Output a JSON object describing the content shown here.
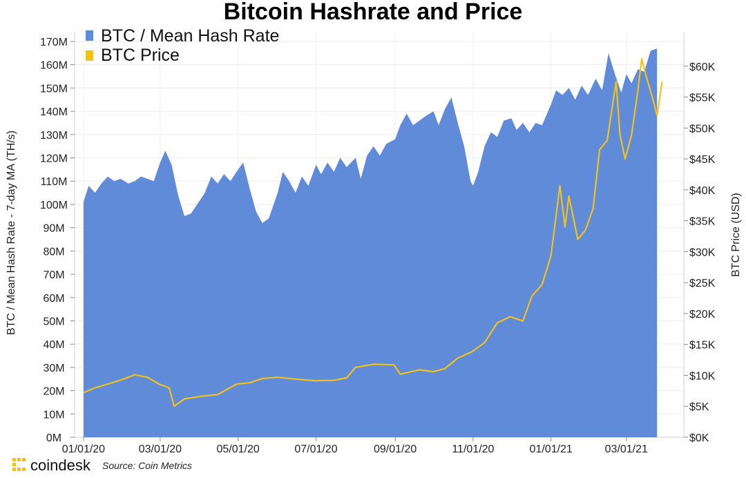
{
  "colors": {
    "hashrate_fill": "#5f8bd9",
    "price_line": "#f2c21b",
    "brand_accent": "#f2c21b"
  },
  "footer": {
    "brand": "coindesk",
    "brand_logo_icon": "coindesk-logo-icon",
    "source": "Source: Coin Metrics"
  },
  "chart_data": {
    "type": "area",
    "title": "Bitcoin Hashrate and Price",
    "ylabel_left": "BTC / Mean Hash Rate - 7-day MA (TH/s)",
    "ylabel_right": "BTC Price (USD)",
    "x_tick_labels": [
      "01/01/20",
      "03/01/20",
      "05/01/20",
      "07/01/20",
      "09/01/20",
      "11/01/20",
      "01/01/21",
      "03/01/21"
    ],
    "x_ticks": [
      "2020-01-01",
      "2020-03-01",
      "2020-05-01",
      "2020-07-01",
      "2020-09-01",
      "2020-11-01",
      "2021-01-01",
      "2021-03-01"
    ],
    "xlim": [
      "2019-12-25",
      "2021-04-15"
    ],
    "left_axis": {
      "ylim": [
        0,
        170
      ],
      "ticks": [
        0,
        10,
        20,
        30,
        40,
        50,
        60,
        70,
        80,
        90,
        100,
        110,
        120,
        130,
        140,
        150,
        160,
        170
      ],
      "tick_labels": [
        "0M",
        "10M",
        "20M",
        "30M",
        "40M",
        "50M",
        "60M",
        "70M",
        "80M",
        "90M",
        "100M",
        "110M",
        "120M",
        "130M",
        "140M",
        "150M",
        "160M",
        "170M"
      ]
    },
    "right_axis": {
      "ylim": [
        0,
        64000
      ],
      "ticks": [
        0,
        5000,
        10000,
        15000,
        20000,
        25000,
        30000,
        35000,
        40000,
        45000,
        50000,
        55000,
        60000
      ],
      "tick_labels": [
        "$0K",
        "$5K",
        "$10K",
        "$15K",
        "$20K",
        "$25K",
        "$30K",
        "$35K",
        "$40K",
        "$45K",
        "$50K",
        "$55K",
        "$60K"
      ]
    },
    "legend": {
      "placement": "top-left",
      "entries": [
        "BTC / Mean Hash Rate",
        "BTC Price"
      ]
    },
    "grid": true,
    "series": [
      {
        "name": "BTC / Mean Hash Rate",
        "kind": "area",
        "axis": "left",
        "units": "M TH/s",
        "points": [
          [
            "2020-01-01",
            101
          ],
          [
            "2020-01-05",
            108
          ],
          [
            "2020-01-10",
            105
          ],
          [
            "2020-01-15",
            109
          ],
          [
            "2020-01-20",
            112
          ],
          [
            "2020-01-25",
            110
          ],
          [
            "2020-01-30",
            111
          ],
          [
            "2020-02-05",
            109
          ],
          [
            "2020-02-10",
            110
          ],
          [
            "2020-02-15",
            112
          ],
          [
            "2020-02-20",
            111
          ],
          [
            "2020-02-25",
            110
          ],
          [
            "2020-03-01",
            118
          ],
          [
            "2020-03-05",
            123
          ],
          [
            "2020-03-10",
            117
          ],
          [
            "2020-03-15",
            104
          ],
          [
            "2020-03-20",
            95
          ],
          [
            "2020-03-25",
            96
          ],
          [
            "2020-03-30",
            100
          ],
          [
            "2020-04-05",
            105
          ],
          [
            "2020-04-10",
            112
          ],
          [
            "2020-04-15",
            109
          ],
          [
            "2020-04-20",
            113
          ],
          [
            "2020-04-25",
            110
          ],
          [
            "2020-05-01",
            115
          ],
          [
            "2020-05-05",
            118
          ],
          [
            "2020-05-10",
            107
          ],
          [
            "2020-05-15",
            97
          ],
          [
            "2020-05-20",
            92
          ],
          [
            "2020-05-25",
            94
          ],
          [
            "2020-06-01",
            105
          ],
          [
            "2020-06-05",
            114
          ],
          [
            "2020-06-10",
            110
          ],
          [
            "2020-06-15",
            105
          ],
          [
            "2020-06-20",
            112
          ],
          [
            "2020-06-25",
            108
          ],
          [
            "2020-07-01",
            117
          ],
          [
            "2020-07-05",
            113
          ],
          [
            "2020-07-10",
            118
          ],
          [
            "2020-07-15",
            114
          ],
          [
            "2020-07-20",
            120
          ],
          [
            "2020-07-25",
            116
          ],
          [
            "2020-08-01",
            120
          ],
          [
            "2020-08-05",
            111
          ],
          [
            "2020-08-10",
            121
          ],
          [
            "2020-08-15",
            125
          ],
          [
            "2020-08-20",
            121
          ],
          [
            "2020-08-25",
            126
          ],
          [
            "2020-09-01",
            128
          ],
          [
            "2020-09-05",
            134
          ],
          [
            "2020-09-10",
            139
          ],
          [
            "2020-09-15",
            134
          ],
          [
            "2020-09-20",
            136
          ],
          [
            "2020-09-25",
            138
          ],
          [
            "2020-10-01",
            140
          ],
          [
            "2020-10-05",
            134
          ],
          [
            "2020-10-10",
            141
          ],
          [
            "2020-10-15",
            146
          ],
          [
            "2020-10-20",
            135
          ],
          [
            "2020-10-25",
            125
          ],
          [
            "2020-10-30",
            110
          ],
          [
            "2020-11-01",
            108
          ],
          [
            "2020-11-05",
            114
          ],
          [
            "2020-11-10",
            125
          ],
          [
            "2020-11-15",
            131
          ],
          [
            "2020-11-20",
            129
          ],
          [
            "2020-11-25",
            136
          ],
          [
            "2020-12-01",
            137
          ],
          [
            "2020-12-05",
            132
          ],
          [
            "2020-12-10",
            135
          ],
          [
            "2020-12-15",
            131
          ],
          [
            "2020-12-20",
            135
          ],
          [
            "2020-12-25",
            134
          ],
          [
            "2021-01-01",
            143
          ],
          [
            "2021-01-05",
            149
          ],
          [
            "2021-01-10",
            147
          ],
          [
            "2021-01-15",
            150
          ],
          [
            "2021-01-20",
            145
          ],
          [
            "2021-01-25",
            151
          ],
          [
            "2021-01-30",
            147
          ],
          [
            "2021-02-05",
            154
          ],
          [
            "2021-02-10",
            149
          ],
          [
            "2021-02-15",
            165
          ],
          [
            "2021-02-20",
            156
          ],
          [
            "2021-02-25",
            148
          ],
          [
            "2021-03-01",
            156
          ],
          [
            "2021-03-05",
            152
          ],
          [
            "2021-03-10",
            158
          ],
          [
            "2021-03-15",
            157
          ],
          [
            "2021-03-20",
            166
          ],
          [
            "2021-03-25",
            167
          ]
        ]
      },
      {
        "name": "BTC Price",
        "kind": "line",
        "axis": "right",
        "units": "USD",
        "points": [
          [
            "2020-01-01",
            7200
          ],
          [
            "2020-01-10",
            8000
          ],
          [
            "2020-01-20",
            8600
          ],
          [
            "2020-01-31",
            9300
          ],
          [
            "2020-02-10",
            10100
          ],
          [
            "2020-02-20",
            9700
          ],
          [
            "2020-02-29",
            8600
          ],
          [
            "2020-03-08",
            8000
          ],
          [
            "2020-03-12",
            5000
          ],
          [
            "2020-03-20",
            6200
          ],
          [
            "2020-04-01",
            6600
          ],
          [
            "2020-04-15",
            6900
          ],
          [
            "2020-04-30",
            8600
          ],
          [
            "2020-05-10",
            8800
          ],
          [
            "2020-05-20",
            9500
          ],
          [
            "2020-06-01",
            9700
          ],
          [
            "2020-06-15",
            9400
          ],
          [
            "2020-06-30",
            9150
          ],
          [
            "2020-07-15",
            9200
          ],
          [
            "2020-07-25",
            9600
          ],
          [
            "2020-08-01",
            11300
          ],
          [
            "2020-08-15",
            11800
          ],
          [
            "2020-08-31",
            11700
          ],
          [
            "2020-09-05",
            10200
          ],
          [
            "2020-09-20",
            10900
          ],
          [
            "2020-10-01",
            10600
          ],
          [
            "2020-10-10",
            11100
          ],
          [
            "2020-10-20",
            12800
          ],
          [
            "2020-10-31",
            13800
          ],
          [
            "2020-11-10",
            15300
          ],
          [
            "2020-11-20",
            18500
          ],
          [
            "2020-11-30",
            19500
          ],
          [
            "2020-12-10",
            18800
          ],
          [
            "2020-12-17",
            22800
          ],
          [
            "2020-12-25",
            24700
          ],
          [
            "2021-01-01",
            29400
          ],
          [
            "2021-01-08",
            40700
          ],
          [
            "2021-01-12",
            34000
          ],
          [
            "2021-01-15",
            39000
          ],
          [
            "2021-01-22",
            32000
          ],
          [
            "2021-01-28",
            33500
          ],
          [
            "2021-02-03",
            37000
          ],
          [
            "2021-02-08",
            46500
          ],
          [
            "2021-02-14",
            48000
          ],
          [
            "2021-02-21",
            57500
          ],
          [
            "2021-02-24",
            49000
          ],
          [
            "2021-02-28",
            45000
          ],
          [
            "2021-03-05",
            48800
          ],
          [
            "2021-03-10",
            56000
          ],
          [
            "2021-03-13",
            61200
          ],
          [
            "2021-03-17",
            58000
          ],
          [
            "2021-03-22",
            54500
          ],
          [
            "2021-03-25",
            52000
          ],
          [
            "2021-03-29",
            57500
          ]
        ]
      }
    ]
  }
}
